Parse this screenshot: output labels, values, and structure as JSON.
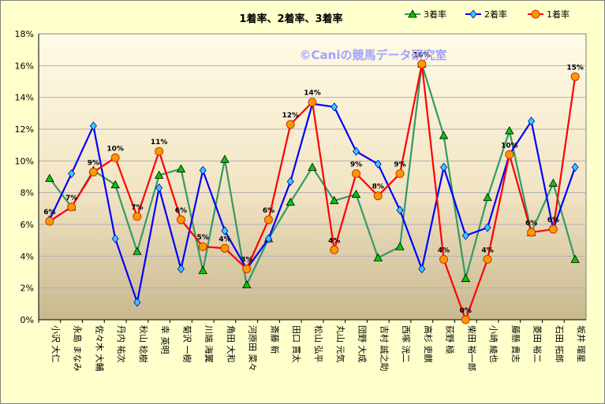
{
  "chart_data": {
    "type": "line",
    "title": "1着率、2着率、3着率",
    "watermark": "©Caniの競馬データ研究室",
    "ylim": [
      0,
      18
    ],
    "ytick_step": 2,
    "ytick_format": "%",
    "legend_position": "top-right",
    "grid": true,
    "categories": [
      "小沢 大仁",
      "永島 まなみ",
      "佐々木 大輔",
      "丹内 祐次",
      "秋山 稔樹",
      "幸 英明",
      "菊沢 一樹",
      "川端 海翼",
      "角田 大和",
      "河原田 菜々",
      "斎藤 新",
      "田口 貫太",
      "松山 弘平",
      "丸山 元気",
      "団野 大成",
      "吉村 誠之助",
      "西塚 洸二",
      "高杉 吏麒",
      "荻野 極",
      "柴田 裕一郎",
      "小崎 綾也",
      "藤懸 貴志",
      "菱田 裕二",
      "石田 拓郎",
      "坂井 瑠星"
    ],
    "series": [
      {
        "name": "3着率",
        "color": "#339966",
        "marker": "triangle",
        "marker_fill": "#00cc00",
        "values": [
          8.9,
          7.1,
          9.4,
          8.5,
          4.3,
          9.1,
          9.5,
          3.1,
          10.1,
          2.2,
          5.1,
          7.4,
          9.6,
          7.5,
          7.9,
          3.9,
          4.6,
          16.1,
          11.6,
          2.6,
          7.7,
          11.9,
          5.5,
          8.6,
          3.8
        ]
      },
      {
        "name": "2着率",
        "color": "#0000ff",
        "marker": "diamond",
        "marker_fill": "#33ccff",
        "values": [
          6.3,
          9.2,
          12.2,
          5.1,
          1.1,
          8.3,
          3.2,
          9.4,
          5.6,
          3.2,
          5.1,
          8.7,
          13.6,
          13.4,
          10.6,
          9.8,
          6.9,
          3.2,
          9.6,
          5.3,
          5.8,
          10.4,
          12.5,
          5.7,
          9.6
        ]
      },
      {
        "name": "1着率",
        "color": "#ff0000",
        "marker": "circle",
        "marker_fill": "#ff9900",
        "values": [
          6.2,
          7.1,
          9.3,
          10.2,
          6.5,
          10.6,
          6.3,
          4.6,
          4.5,
          3.2,
          6.3,
          12.3,
          13.7,
          4.4,
          9.2,
          7.8,
          9.2,
          16.1,
          3.8,
          0.0,
          3.8,
          10.4,
          5.5,
          5.7,
          15.3
        ]
      }
    ],
    "data_labels": [
      "6%",
      "7%",
      "9%",
      "10%",
      "7%",
      "11%",
      "6%",
      "5%",
      "4%",
      "3%",
      "6%",
      "12%",
      "14%",
      "4%",
      "9%",
      "8%",
      "9%",
      "16%",
      "4%",
      "0%",
      "4%",
      "10%",
      "6%",
      "6%",
      "15%"
    ]
  }
}
